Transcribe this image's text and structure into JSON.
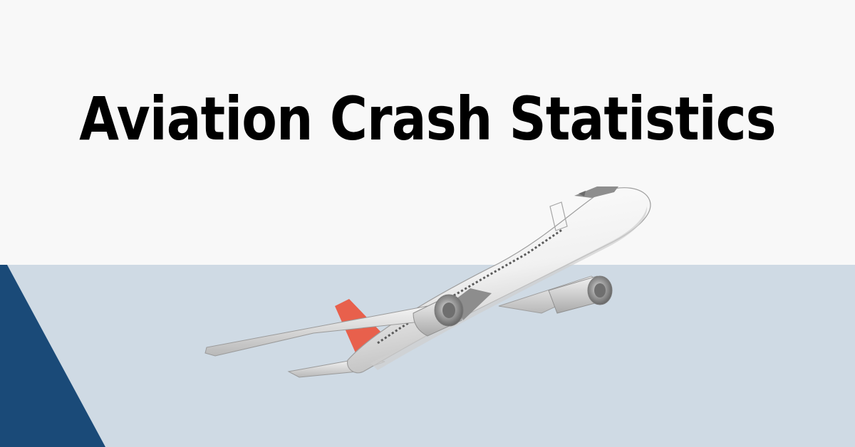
{
  "banner": {
    "title": "Aviation Crash Statistics",
    "illustration": "airplane-illustration"
  },
  "colors": {
    "top_background": "#f8f8f8",
    "bottom_background": "#cfdae4",
    "accent_triangle": "#1a4a78",
    "title_text": "#000000",
    "tail_accent": "#e8604c"
  }
}
